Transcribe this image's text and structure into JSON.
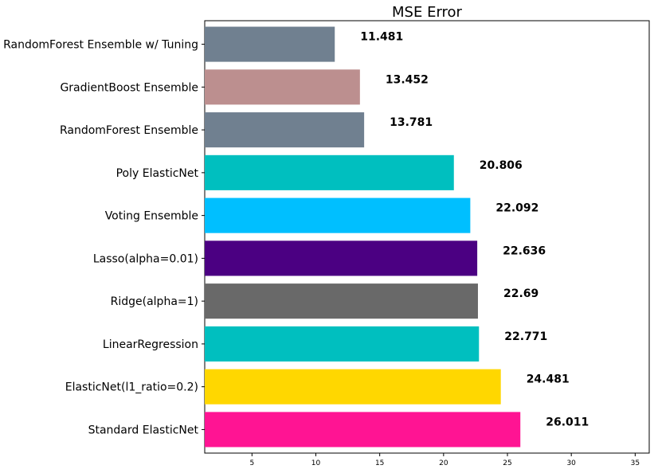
{
  "chart_data": {
    "type": "bar",
    "orientation": "horizontal",
    "title": "MSE Error",
    "xlabel": "",
    "ylabel": "",
    "xlim": [
      1.3,
      36.1
    ],
    "xticks": [
      5,
      10,
      15,
      20,
      25,
      30,
      35
    ],
    "xtick_labels": [
      "5",
      "10",
      "15",
      "20",
      "25",
      "30",
      "35"
    ],
    "grid": false,
    "categories": [
      "RandomForest Ensemble w/ Tuning",
      "GradientBoost Ensemble",
      "RandomForest Ensemble",
      "Poly ElasticNet",
      "Voting Ensemble",
      "Lasso(alpha=0.01)",
      "Ridge(alpha=1)",
      "LinearRegression",
      "ElasticNet(l1_ratio=0.2)",
      "Standard ElasticNet"
    ],
    "values": [
      11.481,
      13.452,
      13.781,
      20.806,
      22.092,
      22.636,
      22.69,
      22.771,
      24.481,
      26.011
    ],
    "value_labels": [
      "11.481",
      "13.452",
      "13.781",
      "20.806",
      "22.092",
      "22.636",
      "22.69",
      "22.771",
      "24.481",
      "26.011"
    ],
    "colors": [
      "#708090",
      "#bc8f8f",
      "#708090",
      "#00bfbf",
      "#00bfff",
      "#4b0082",
      "#696969",
      "#00bfbf",
      "#ffd700",
      "#ff1493"
    ]
  }
}
